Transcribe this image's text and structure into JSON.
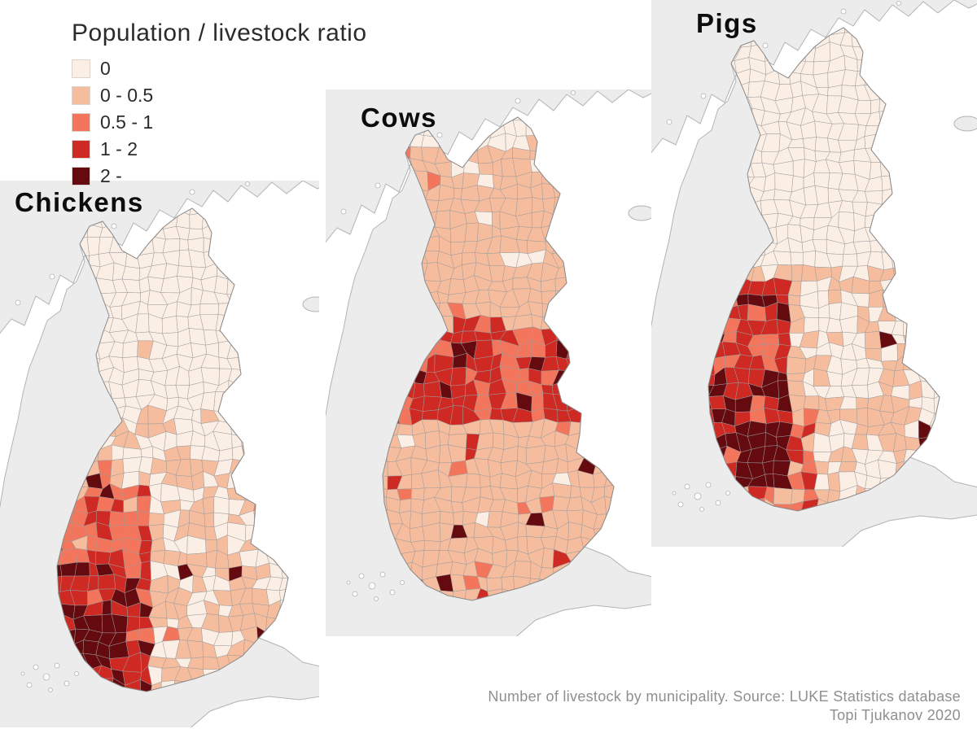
{
  "legend": {
    "title": "Population / livestock ratio",
    "classes": [
      {
        "label": "0",
        "color": "#fbeee5"
      },
      {
        "label": "0 - 0.5",
        "color": "#f6bc9e"
      },
      {
        "label": "0.5 - 1",
        "color": "#f3755b"
      },
      {
        "label": "1 - 2",
        "color": "#ce2a23"
      },
      {
        "label": "2 -",
        "color": "#650b10"
      }
    ]
  },
  "panels": [
    {
      "id": "chickens",
      "title": "Chickens"
    },
    {
      "id": "cows",
      "title": "Cows"
    },
    {
      "id": "pigs",
      "title": "Pigs"
    }
  ],
  "caption": {
    "line1": "Number of livestock by municipality. Source: LUKE Statistics database",
    "line2": "Topi Tjukanov 2020"
  },
  "colors": {
    "sea": "#ececec",
    "land": "#ffffff",
    "coast": "#b3b3b3",
    "municipality_border": "#9c9c9c",
    "finland_outline": "#8a8a8a"
  }
}
